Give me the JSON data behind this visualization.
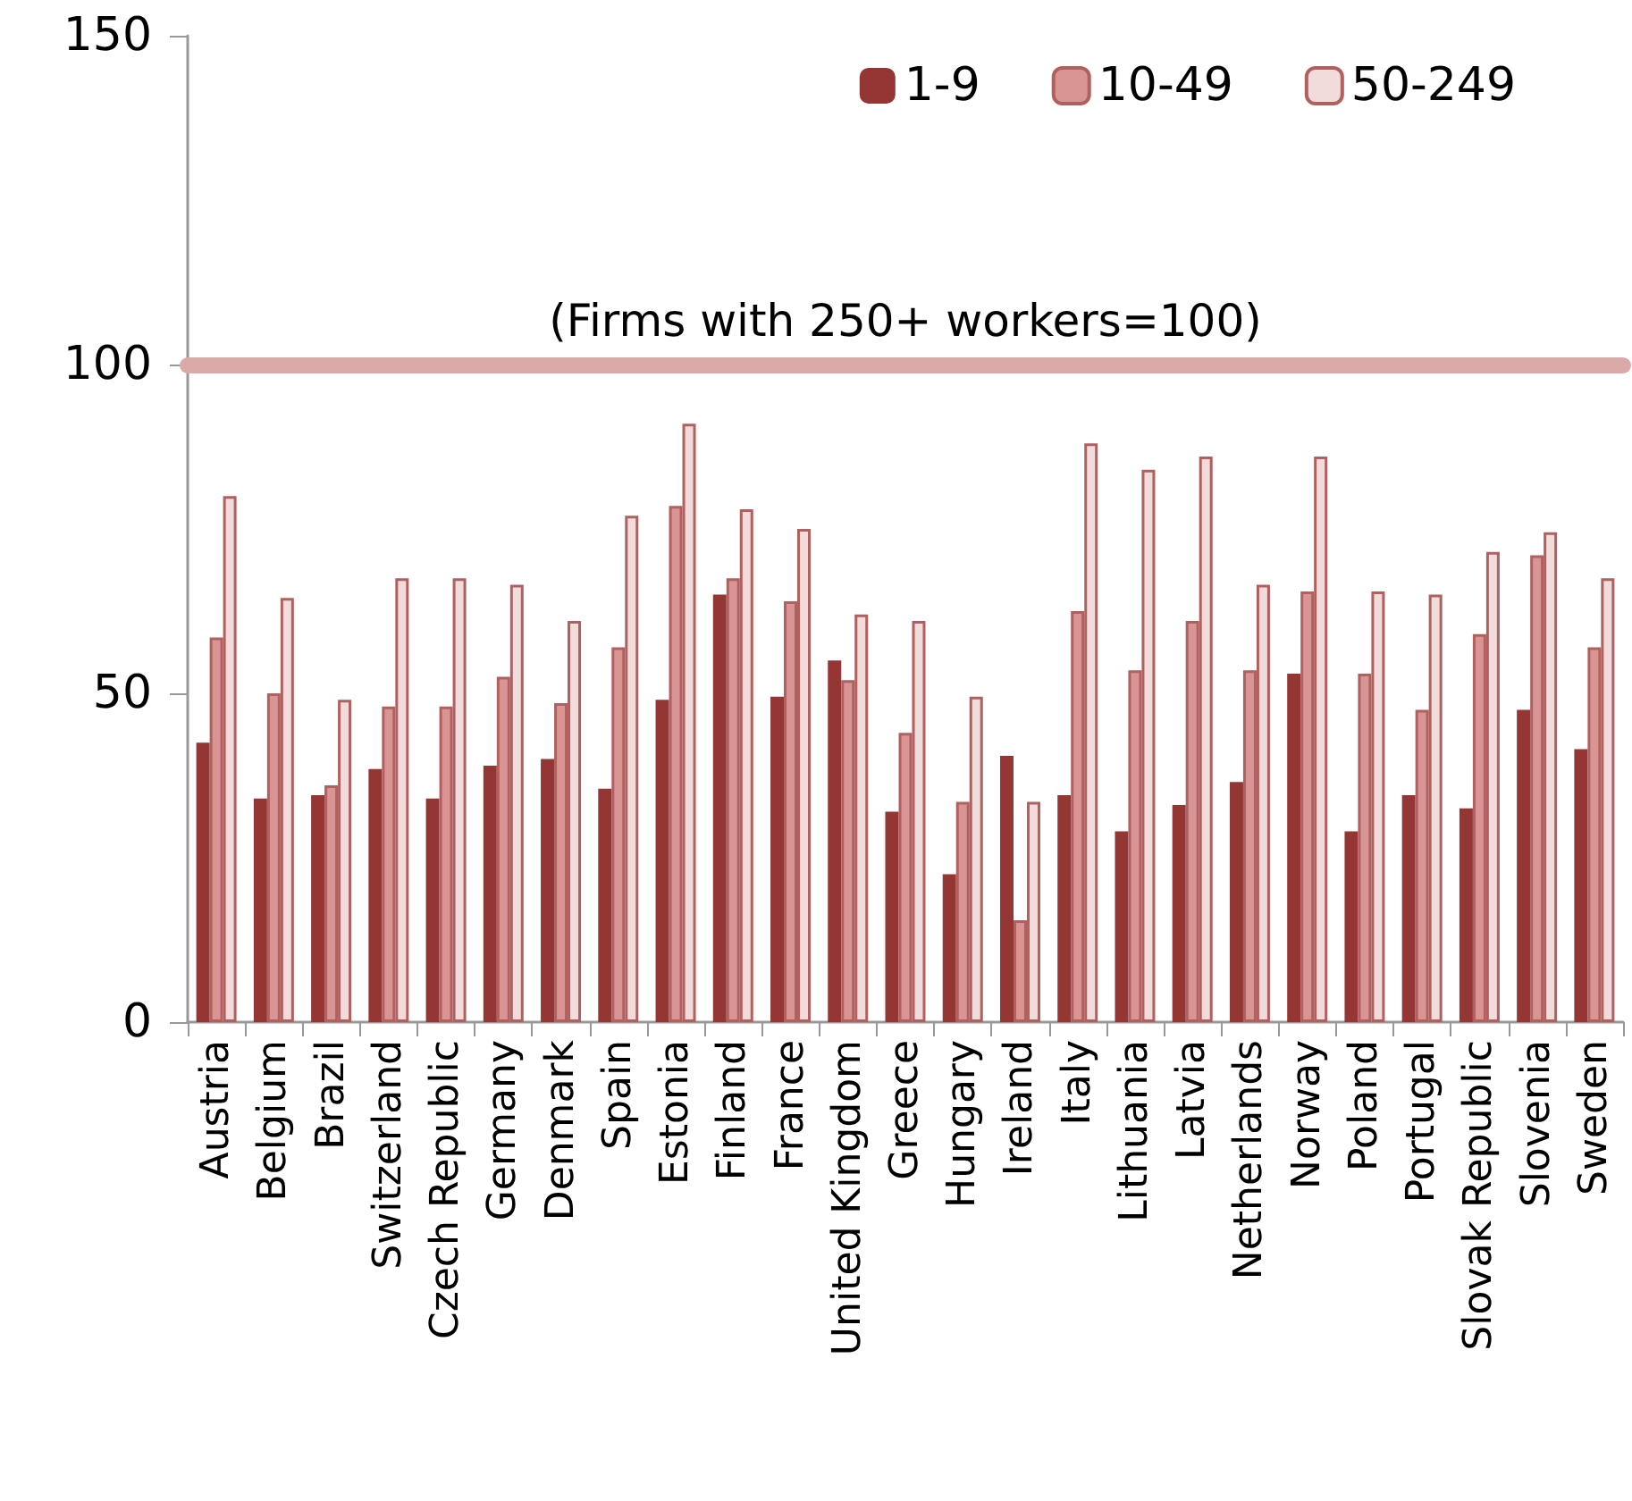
{
  "chart_data": {
    "type": "bar",
    "categories": [
      "Austria",
      "Belgium",
      "Brazil",
      "Switzerland",
      "Czech Republic",
      "Germany",
      "Denmark",
      "Spain",
      "Estonia",
      "Finland",
      "France",
      "United Kingdom",
      "Greece",
      "Hungary",
      "Ireland",
      "Italy",
      "Lithuania",
      "Latvia",
      "Netherlands",
      "Norway",
      "Poland",
      "Portugal",
      "Slovak Republic",
      "Slovenia",
      "Sweden"
    ],
    "series": [
      {
        "name": "1-9",
        "color": "#943634",
        "values": [
          42.5,
          34,
          34.5,
          38.5,
          34,
          39,
          40,
          35.5,
          49,
          65,
          49.5,
          55,
          32,
          22.5,
          40.5,
          34.5,
          29,
          33,
          36.5,
          53,
          29,
          34.5,
          32.5,
          47.5,
          41.5
        ]
      },
      {
        "name": "10-49",
        "color": "#d99594",
        "values": [
          58.5,
          50,
          36,
          48,
          48,
          52.5,
          48.5,
          57,
          78.5,
          67.5,
          64,
          52,
          44,
          33.5,
          15.5,
          62.5,
          53.5,
          61,
          53.5,
          65.5,
          53,
          47.5,
          59,
          71,
          57
        ]
      },
      {
        "name": "50-249",
        "color": "#f2dcdb",
        "values": [
          80,
          64.5,
          49,
          67.5,
          67.5,
          66.5,
          61,
          77,
          91,
          78,
          75,
          62,
          61,
          49.5,
          33.5,
          88,
          84,
          86,
          66.5,
          86,
          65.5,
          65,
          71.5,
          74.5,
          67.5
        ]
      }
    ],
    "ylim": [
      0,
      150
    ],
    "yticks": [
      0,
      50,
      100,
      150
    ],
    "grid": false,
    "legend": "top right",
    "ref_lines": [
      {
        "axis": "y",
        "value": 100,
        "label": "(Firms with 250+ workers=100)",
        "color": "#dba9a8"
      }
    ]
  }
}
